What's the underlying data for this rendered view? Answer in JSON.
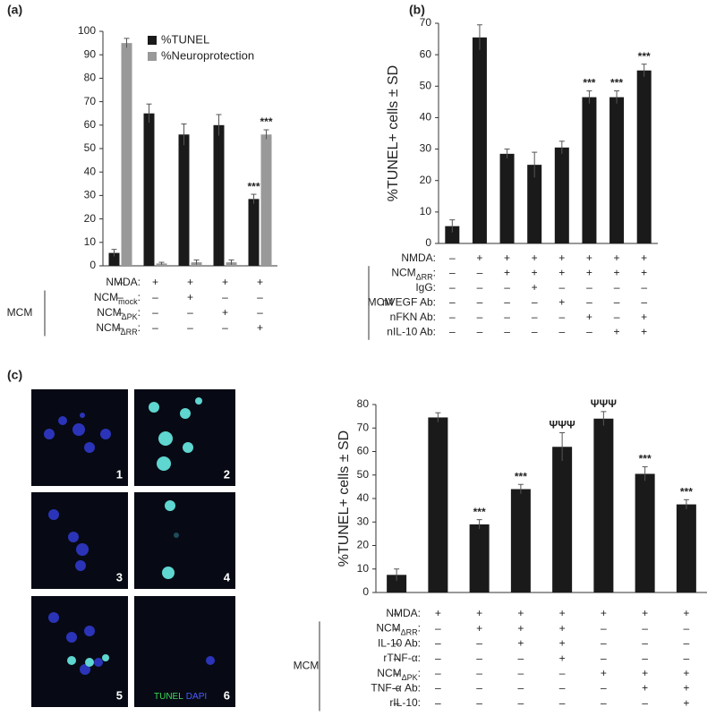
{
  "chart_data": [
    {
      "type": "bar",
      "panel": "(a)",
      "legend": "upper center",
      "categories": [
        null,
        null,
        null,
        null,
        null
      ],
      "ylim": [
        0,
        100
      ],
      "yticks": [
        0,
        10,
        20,
        30,
        40,
        50,
        60,
        70,
        80,
        90,
        100
      ],
      "series": [
        {
          "name": "%TUNEL",
          "color": "#1a1a1a",
          "values": [
            5.5,
            65,
            56,
            60,
            28.5
          ],
          "errors": [
            1.5,
            4,
            4.5,
            4.5,
            2
          ],
          "annotations": [
            null,
            null,
            null,
            null,
            "***"
          ]
        },
        {
          "name": "%Neuroprotection",
          "color": "#999999",
          "values": [
            95,
            1,
            1.5,
            1.5,
            56
          ],
          "errors": [
            2,
            0.5,
            1,
            1,
            2
          ],
          "annotations": [
            null,
            null,
            null,
            null,
            "***"
          ]
        }
      ],
      "conditions": [
        {
          "label": "NMDA:",
          "marks": [
            "–",
            "+",
            "+",
            "+",
            "+"
          ]
        },
        {
          "label": {
            "text": "NCM",
            "sub": "mock",
            "end": ":"
          },
          "marks": [
            "–",
            "–",
            "+",
            "–",
            "–"
          ]
        },
        {
          "label": {
            "text": "NCM",
            "sub": "ΔPK",
            "end": ":"
          },
          "marks": [
            "–",
            "–",
            "–",
            "+",
            "–"
          ]
        },
        {
          "label": {
            "text": "NCM",
            "sub": "ΔRR",
            "end": ":"
          },
          "marks": [
            "–",
            "–",
            "–",
            "–",
            "+"
          ]
        }
      ],
      "group_label": "MCM"
    },
    {
      "type": "bar",
      "panel": "(b)",
      "y_label": "%TUNEL+ cells ± SD",
      "categories": [
        null,
        null,
        null,
        null,
        null,
        null,
        null,
        null
      ],
      "ylim": [
        0,
        70
      ],
      "yticks": [
        0,
        10,
        20,
        30,
        40,
        50,
        60,
        70
      ],
      "series": [
        {
          "color": "#1a1a1a",
          "values": [
            5.5,
            65.5,
            28.5,
            25,
            30.5,
            46.5,
            46.5,
            55
          ],
          "errors": [
            2,
            4,
            1.5,
            4,
            2,
            2,
            2,
            2
          ],
          "annotations": [
            null,
            null,
            null,
            null,
            null,
            "***",
            "***",
            "***"
          ]
        }
      ],
      "conditions": [
        {
          "label": "NMDA:",
          "marks": [
            "–",
            "+",
            "+",
            "+",
            "+",
            "+",
            "+",
            "+"
          ]
        },
        {
          "label": {
            "text": "NCM",
            "sub": "ΔRR",
            "end": ":"
          },
          "marks": [
            "–",
            "–",
            "+",
            "+",
            "+",
            "+",
            "+",
            "+"
          ]
        },
        {
          "label": "IgG:",
          "marks": [
            "–",
            "–",
            "–",
            "+",
            "–",
            "–",
            "–",
            "–"
          ]
        },
        {
          "label": "nVEGF Ab:",
          "marks": [
            "–",
            "–",
            "–",
            "–",
            "+",
            "–",
            "–",
            "–"
          ]
        },
        {
          "label": "nFKN Ab:",
          "marks": [
            "–",
            "–",
            "–",
            "–",
            "–",
            "+",
            "–",
            "+"
          ]
        },
        {
          "label": "nIL-10 Ab:",
          "marks": [
            "–",
            "–",
            "–",
            "–",
            "–",
            "–",
            "+",
            "+"
          ]
        }
      ],
      "group_label": "MCM"
    },
    {
      "type": "bar",
      "y_label": "%TUNEL+ cells ± SD",
      "categories": [
        null,
        null,
        null,
        null,
        null,
        null,
        null,
        null
      ],
      "ylim": [
        0,
        80
      ],
      "yticks": [
        0,
        10,
        20,
        30,
        40,
        50,
        60,
        70,
        80
      ],
      "series": [
        {
          "color": "#1a1a1a",
          "values": [
            7.5,
            74.5,
            29,
            44,
            62,
            74,
            50.5,
            37.5
          ],
          "errors": [
            2.5,
            2,
            2,
            2,
            6,
            3,
            3,
            2
          ],
          "annotations": [
            null,
            null,
            "***",
            "***",
            "ΨΨΨ",
            "ΨΨΨ",
            "***",
            "***"
          ]
        }
      ],
      "conditions": [
        {
          "label": "NMDA:",
          "marks": [
            "–",
            "+",
            "+",
            "+",
            "+",
            "+",
            "+",
            "+"
          ]
        },
        {
          "label": {
            "text": "NCM",
            "sub": "ΔRR",
            "end": ":"
          },
          "marks": [
            "–",
            "–",
            "+",
            "+",
            "+",
            "–",
            "–",
            "–"
          ]
        },
        {
          "label": "IL-10 Ab:",
          "marks": [
            "–",
            "–",
            "–",
            "+",
            "+",
            "–",
            "–",
            "–"
          ]
        },
        {
          "label": "rTNF-α:",
          "marks": [
            "–",
            "–",
            "–",
            "–",
            "+",
            "–",
            "–",
            "–"
          ]
        },
        {
          "label": {
            "text": "NCM",
            "sub": "ΔPK",
            "end": ":"
          },
          "marks": [
            "–",
            "–",
            "–",
            "–",
            "–",
            "+",
            "+",
            "+"
          ]
        },
        {
          "label": "TNF-α Ab:",
          "marks": [
            "–",
            "–",
            "–",
            "–",
            "–",
            "–",
            "+",
            "+"
          ]
        },
        {
          "label": "rIL-10:",
          "marks": [
            "–",
            "–",
            "–",
            "–",
            "–",
            "–",
            "–",
            "+"
          ]
        }
      ],
      "group_label": "MCM"
    }
  ],
  "micrographs": {
    "panel": "(c)",
    "labels": [
      "1",
      "2",
      "3",
      "4",
      "5",
      "6"
    ],
    "stain_labels": [
      "TUNEL",
      "DAPI"
    ]
  }
}
